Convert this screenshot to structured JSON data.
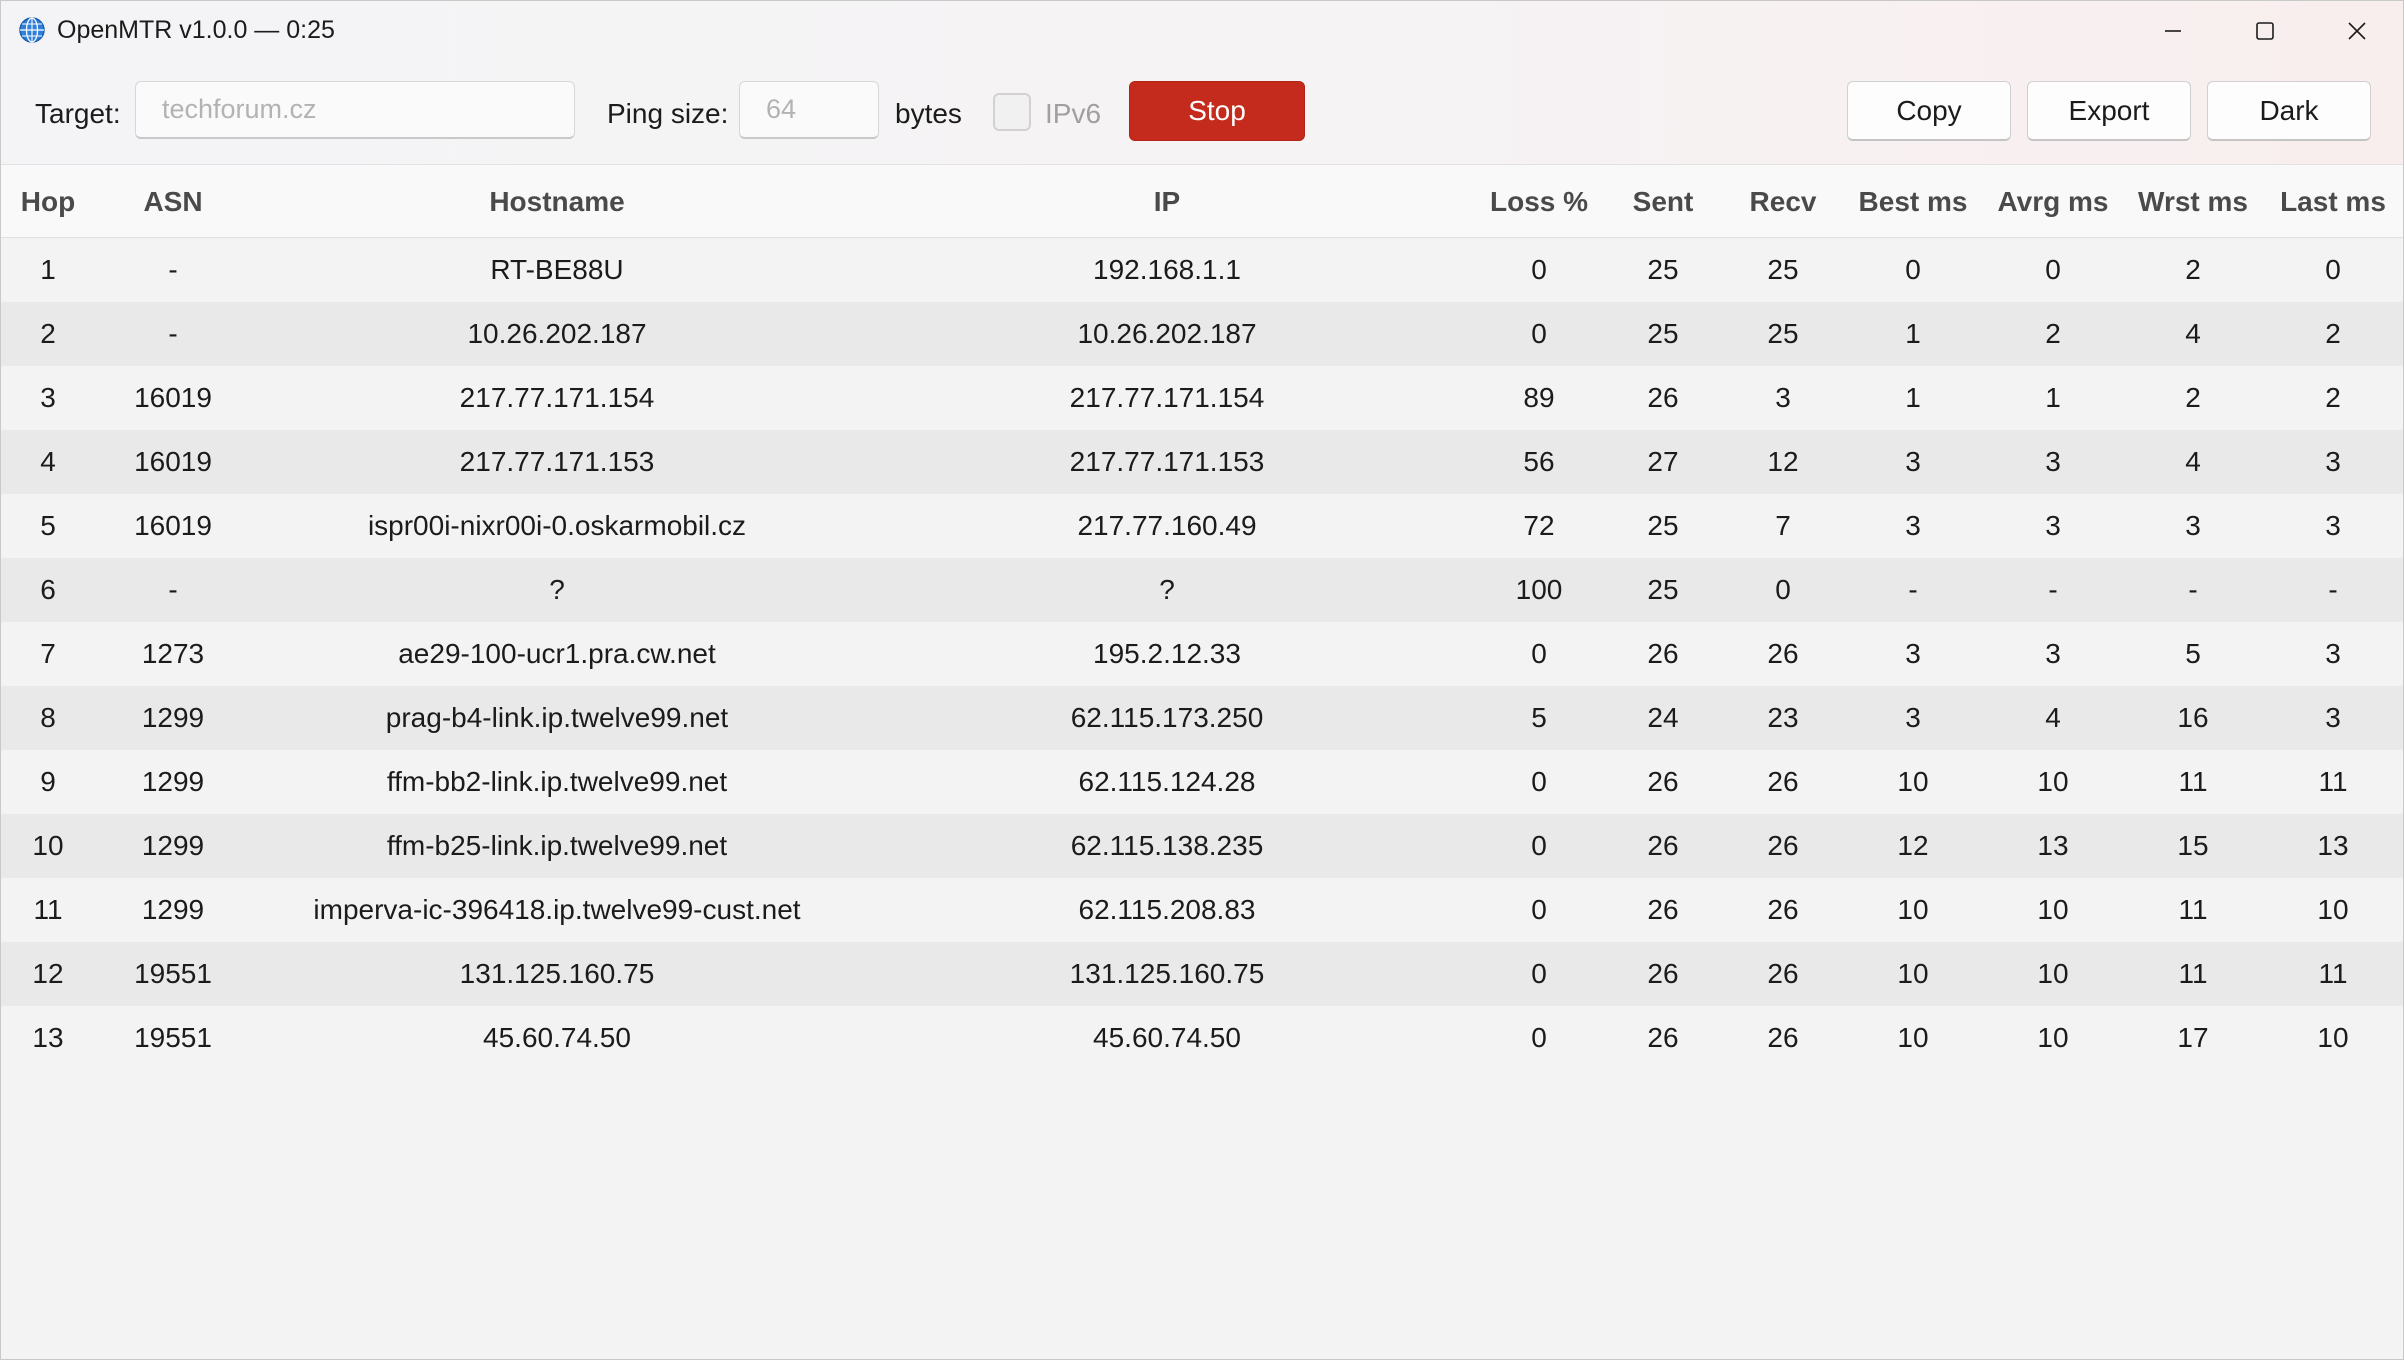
{
  "window": {
    "title": "OpenMTR v1.0.0 — 0:25",
    "icon": "globe-icon"
  },
  "toolbar": {
    "target_label": "Target:",
    "target_value": "techforum.cz",
    "ping_size_label": "Ping size:",
    "ping_size_value": "64",
    "bytes_label": "bytes",
    "ipv6_label": "IPv6",
    "ipv6_checked": false,
    "stop_label": "Stop",
    "copy_label": "Copy",
    "export_label": "Export",
    "dark_label": "Dark"
  },
  "colors": {
    "stop_button": "#c42b1c",
    "row_alt": "#e9e9e9",
    "background": "#f3f3f3"
  },
  "table": {
    "columns": [
      "Hop",
      "ASN",
      "Hostname",
      "IP",
      "Loss %",
      "Sent",
      "Recv",
      "Best ms",
      "Avrg ms",
      "Wrst ms",
      "Last ms"
    ],
    "rows": [
      [
        "1",
        "-",
        "RT-BE88U",
        "192.168.1.1",
        "0",
        "25",
        "25",
        "0",
        "0",
        "2",
        "0"
      ],
      [
        "2",
        "-",
        "10.26.202.187",
        "10.26.202.187",
        "0",
        "25",
        "25",
        "1",
        "2",
        "4",
        "2"
      ],
      [
        "3",
        "16019",
        "217.77.171.154",
        "217.77.171.154",
        "89",
        "26",
        "3",
        "1",
        "1",
        "2",
        "2"
      ],
      [
        "4",
        "16019",
        "217.77.171.153",
        "217.77.171.153",
        "56",
        "27",
        "12",
        "3",
        "3",
        "4",
        "3"
      ],
      [
        "5",
        "16019",
        "ispr00i-nixr00i-0.oskarmobil.cz",
        "217.77.160.49",
        "72",
        "25",
        "7",
        "3",
        "3",
        "3",
        "3"
      ],
      [
        "6",
        "-",
        "?",
        "?",
        "100",
        "25",
        "0",
        "-",
        "-",
        "-",
        "-"
      ],
      [
        "7",
        "1273",
        "ae29-100-ucr1.pra.cw.net",
        "195.2.12.33",
        "0",
        "26",
        "26",
        "3",
        "3",
        "5",
        "3"
      ],
      [
        "8",
        "1299",
        "prag-b4-link.ip.twelve99.net",
        "62.115.173.250",
        "5",
        "24",
        "23",
        "3",
        "4",
        "16",
        "3"
      ],
      [
        "9",
        "1299",
        "ffm-bb2-link.ip.twelve99.net",
        "62.115.124.28",
        "0",
        "26",
        "26",
        "10",
        "10",
        "11",
        "11"
      ],
      [
        "10",
        "1299",
        "ffm-b25-link.ip.twelve99.net",
        "62.115.138.235",
        "0",
        "26",
        "26",
        "12",
        "13",
        "15",
        "13"
      ],
      [
        "11",
        "1299",
        "imperva-ic-396418.ip.twelve99-cust.net",
        "62.115.208.83",
        "0",
        "26",
        "26",
        "10",
        "10",
        "11",
        "10"
      ],
      [
        "12",
        "19551",
        "131.125.160.75",
        "131.125.160.75",
        "0",
        "26",
        "26",
        "10",
        "10",
        "11",
        "11"
      ],
      [
        "13",
        "19551",
        "45.60.74.50",
        "45.60.74.50",
        "0",
        "26",
        "26",
        "10",
        "10",
        "17",
        "10"
      ]
    ]
  }
}
